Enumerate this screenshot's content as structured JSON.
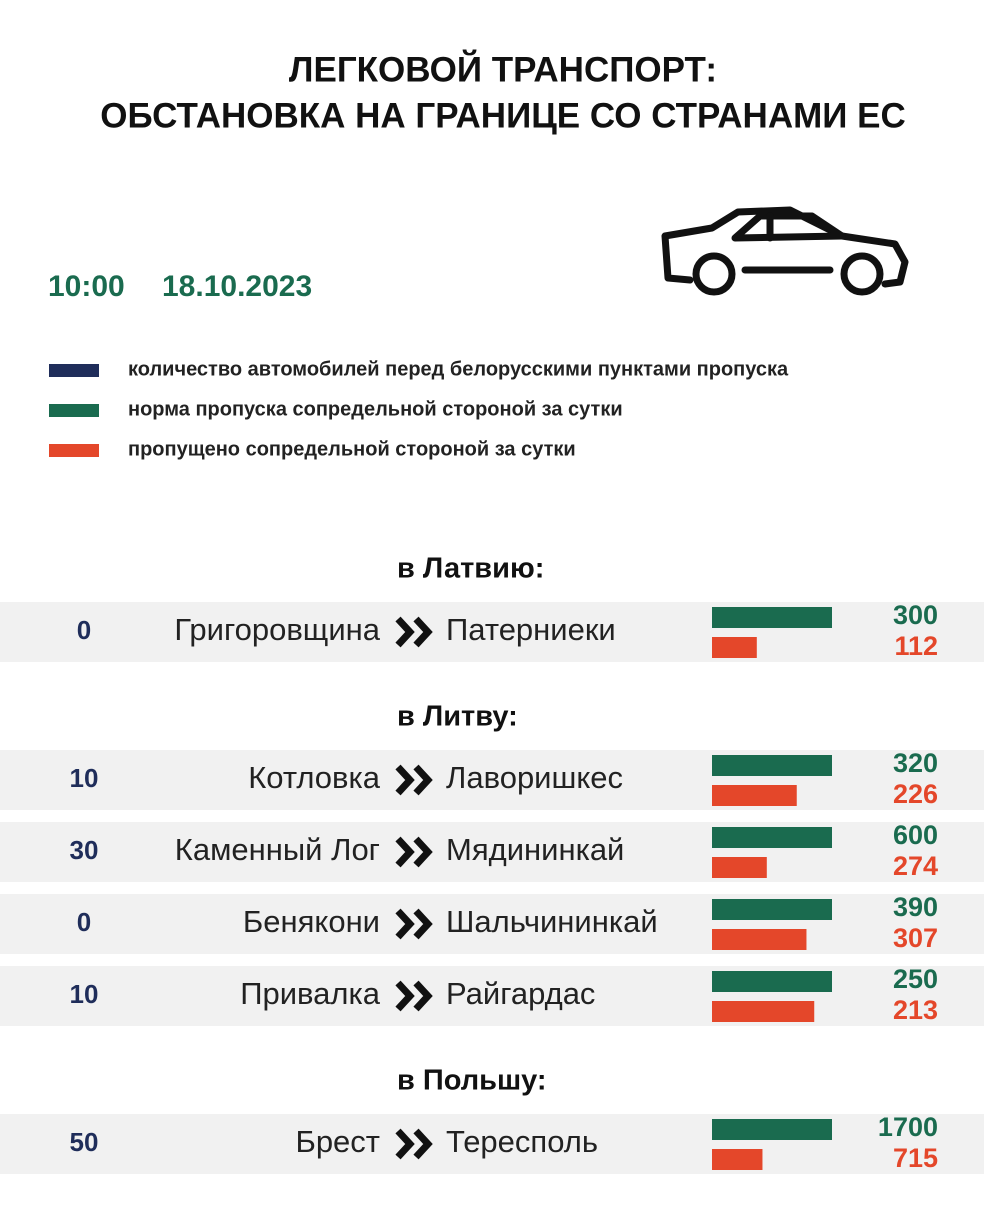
{
  "header": {
    "title_lines": [
      "ЛЕГКОВОЙ ТРАНСПОРТ:",
      "ОБСТАНОВКА НА ГРАНИЦЕ СО СТРАНАМИ ЕС"
    ],
    "time": "10:00",
    "date": "18.10.2023"
  },
  "legend": [
    {
      "label": "количество автомобилей перед белорусскими пунктами пропуска",
      "color": "#1f2d5a"
    },
    {
      "label": "норма пропуска сопредельной стороной за сутки",
      "color": "#1a6b4f"
    },
    {
      "label": "пропущено сопредельной стороной за сутки",
      "color": "#e4472a"
    }
  ],
  "groups": [
    {
      "title": "в Латвию:",
      "rows": [
        {
          "queue": 0,
          "from": "Григоровщина",
          "to": "Патерниеки",
          "norm": 300,
          "passed": 112
        }
      ]
    },
    {
      "title": "в Литву:",
      "rows": [
        {
          "queue": 10,
          "from": "Котловка",
          "to": "Лаворишкес",
          "norm": 320,
          "passed": 226
        },
        {
          "queue": 30,
          "from": "Каменный Лог",
          "to": "Мядининкай",
          "norm": 600,
          "passed": 274
        },
        {
          "queue": 0,
          "from": "Бенякони",
          "to": "Шальчининкай",
          "norm": 390,
          "passed": 307
        },
        {
          "queue": 10,
          "from": "Привалка",
          "to": "Райгардас",
          "norm": 250,
          "passed": 213
        }
      ]
    },
    {
      "title": "в Польшу:",
      "rows": [
        {
          "queue": 50,
          "from": "Брест",
          "to": "Тересполь",
          "norm": 1700,
          "passed": 715
        }
      ]
    }
  ]
}
